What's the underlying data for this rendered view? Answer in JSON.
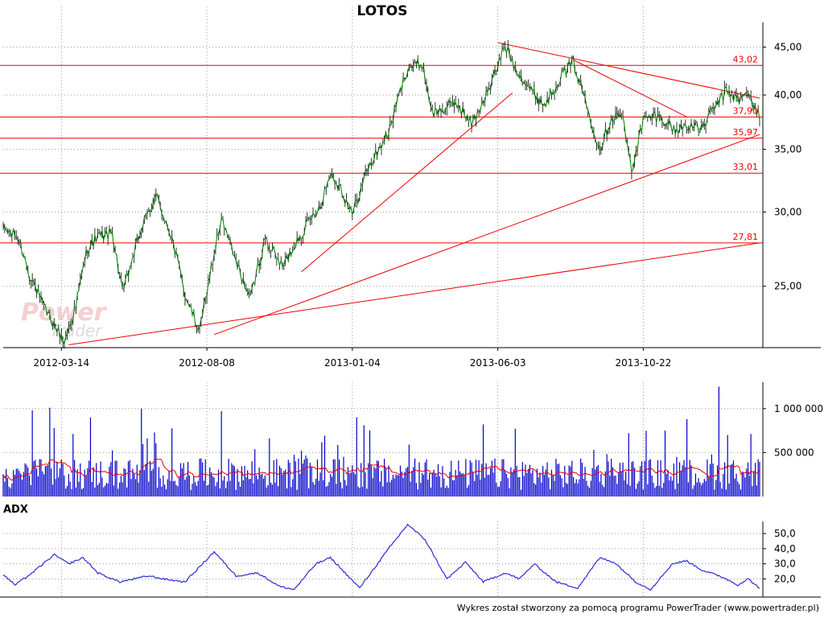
{
  "title": "LOTOS",
  "footer": "Wykres został stworzony za pomocą programu PowerTrader (www.powertrader.pl)",
  "watermark": {
    "line1": "Power",
    "line2": "Trader"
  },
  "colors": {
    "price_line": "#007a00",
    "price_bar": "#000000",
    "level_line": "#ee0000",
    "volume_bar": "#0000c8",
    "volume_ma": "#ee0000",
    "adx_line": "#2b2bd6",
    "grid": "#9a9a9a",
    "watermark": "#f0c8c8"
  },
  "chart_data": [
    {
      "type": "line",
      "name": "price",
      "title": "LOTOS",
      "y_scale": "log",
      "ylim": [
        21.5,
        47.8
      ],
      "y_ticks": [
        {
          "v": 25,
          "label": "25,00"
        },
        {
          "v": 30,
          "label": "30,00"
        },
        {
          "v": 35,
          "label": "35,00"
        },
        {
          "v": 40,
          "label": "40,00"
        },
        {
          "v": 45,
          "label": "45,00"
        }
      ],
      "x_ticks": [
        {
          "idx": 40,
          "label": "2012-03-14"
        },
        {
          "idx": 140,
          "label": "2012-08-08"
        },
        {
          "idx": 240,
          "label": "2013-01-04"
        },
        {
          "idx": 340,
          "label": "2013-06-03"
        },
        {
          "idx": 440,
          "label": "2013-10-22"
        }
      ],
      "n_points": 520,
      "anchors": [
        [
          0,
          28.8
        ],
        [
          10,
          28.2
        ],
        [
          18,
          25.8
        ],
        [
          28,
          23.7
        ],
        [
          42,
          21.8
        ],
        [
          50,
          23.8
        ],
        [
          58,
          27.5
        ],
        [
          65,
          28.2
        ],
        [
          75,
          28.5
        ],
        [
          82,
          24.5
        ],
        [
          95,
          28.8
        ],
        [
          105,
          31.2
        ],
        [
          115,
          28.5
        ],
        [
          125,
          24.5
        ],
        [
          135,
          22.3
        ],
        [
          150,
          29.5
        ],
        [
          160,
          26.5
        ],
        [
          170,
          24.2
        ],
        [
          180,
          28.1
        ],
        [
          192,
          26.2
        ],
        [
          205,
          28.5
        ],
        [
          218,
          30.5
        ],
        [
          225,
          33.0
        ],
        [
          232,
          31.8
        ],
        [
          240,
          29.8
        ],
        [
          250,
          33.2
        ],
        [
          265,
          36.5
        ],
        [
          278,
          42.8
        ],
        [
          288,
          43.2
        ],
        [
          295,
          38.2
        ],
        [
          305,
          38.8
        ],
        [
          312,
          39.2
        ],
        [
          322,
          37.2
        ],
        [
          335,
          40.8
        ],
        [
          345,
          45.2
        ],
        [
          352,
          42.8
        ],
        [
          362,
          40.6
        ],
        [
          372,
          39.0
        ],
        [
          382,
          41.6
        ],
        [
          392,
          43.4
        ],
        [
          402,
          38.6
        ],
        [
          410,
          35.0
        ],
        [
          418,
          37.8
        ],
        [
          425,
          38.2
        ],
        [
          432,
          33.2
        ],
        [
          440,
          37.6
        ],
        [
          448,
          38.0
        ],
        [
          455,
          37.6
        ],
        [
          462,
          36.6
        ],
        [
          470,
          37.2
        ],
        [
          480,
          36.8
        ],
        [
          490,
          39.0
        ],
        [
          498,
          40.5
        ],
        [
          505,
          39.4
        ],
        [
          512,
          40.2
        ],
        [
          518,
          38.4
        ],
        [
          520,
          37.8
        ]
      ],
      "level_lines": [
        27.81,
        33.01,
        35.97,
        37.9,
        43.02
      ],
      "level_labels": [
        {
          "v": 43.02,
          "label": "43,02"
        },
        {
          "v": 37.9,
          "label": "37,90"
        },
        {
          "v": 35.97,
          "label": "35,97"
        },
        {
          "v": 33.01,
          "label": "33,01"
        },
        {
          "v": 27.81,
          "label": "27,81"
        }
      ],
      "trend_lines": [
        [
          [
            45,
            21.65
          ],
          [
            520,
            27.81
          ]
        ],
        [
          [
            145,
            22.2
          ],
          [
            520,
            36.3
          ]
        ],
        [
          [
            205,
            25.9
          ],
          [
            350,
            40.2
          ]
        ],
        [
          [
            340,
            45.5
          ],
          [
            520,
            39.7
          ]
        ],
        [
          [
            392,
            43.6
          ],
          [
            470,
            37.9
          ]
        ]
      ]
    },
    {
      "type": "bar",
      "name": "volume",
      "ylim": [
        0,
        1300000
      ],
      "y_ticks": [
        {
          "v": 500000,
          "label": "500 000"
        },
        {
          "v": 1000000,
          "label": "1 000 000"
        }
      ],
      "peaks": [
        [
          20,
          980000
        ],
        [
          32,
          1010000
        ],
        [
          60,
          900000
        ],
        [
          95,
          1000000
        ],
        [
          150,
          970000
        ],
        [
          243,
          900000
        ],
        [
          248,
          810000
        ],
        [
          330,
          820000
        ],
        [
          352,
          770000
        ],
        [
          430,
          720000
        ],
        [
          470,
          880000
        ],
        [
          492,
          1250000
        ],
        [
          498,
          700000
        ]
      ],
      "base_level": 300000,
      "ma_level": 300000
    },
    {
      "type": "line",
      "name": "ADX",
      "title": "ADX",
      "ylim": [
        8,
        58
      ],
      "y_ticks": [
        {
          "v": 20,
          "label": "20,0"
        },
        {
          "v": 30,
          "label": "30,0"
        },
        {
          "v": 40,
          "label": "40,0"
        },
        {
          "v": 50,
          "label": "50,0"
        }
      ],
      "anchors": [
        [
          0,
          23
        ],
        [
          8,
          16
        ],
        [
          20,
          24
        ],
        [
          35,
          36
        ],
        [
          45,
          30
        ],
        [
          55,
          34
        ],
        [
          65,
          24
        ],
        [
          80,
          18
        ],
        [
          100,
          22
        ],
        [
          110,
          20
        ],
        [
          125,
          18
        ],
        [
          145,
          38
        ],
        [
          160,
          22
        ],
        [
          175,
          24
        ],
        [
          190,
          15
        ],
        [
          200,
          13
        ],
        [
          215,
          30
        ],
        [
          225,
          34
        ],
        [
          245,
          14
        ],
        [
          265,
          40
        ],
        [
          278,
          56
        ],
        [
          290,
          46
        ],
        [
          305,
          20
        ],
        [
          318,
          31
        ],
        [
          330,
          18
        ],
        [
          345,
          24
        ],
        [
          355,
          20
        ],
        [
          365,
          30
        ],
        [
          380,
          18
        ],
        [
          395,
          14
        ],
        [
          410,
          34
        ],
        [
          420,
          31
        ],
        [
          435,
          18
        ],
        [
          445,
          13
        ],
        [
          460,
          30
        ],
        [
          470,
          32
        ],
        [
          480,
          26
        ],
        [
          495,
          21
        ],
        [
          505,
          16
        ],
        [
          512,
          20
        ],
        [
          520,
          14
        ]
      ]
    }
  ]
}
